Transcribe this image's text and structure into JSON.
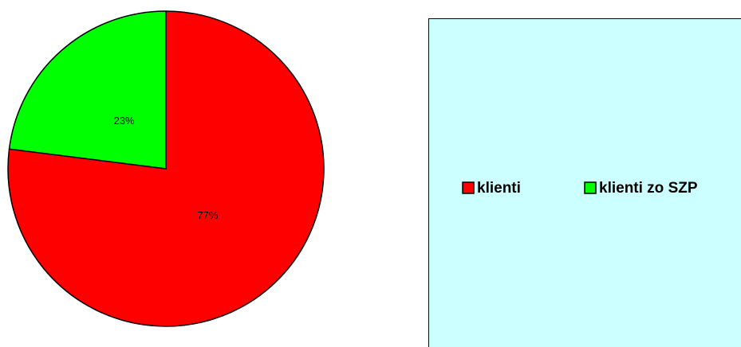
{
  "chart_data": {
    "type": "pie",
    "categories": [
      "klienti",
      "klienti zo SZP"
    ],
    "values": [
      77,
      23
    ],
    "value_labels": [
      "77%",
      "23%"
    ],
    "colors": [
      "#ff0000",
      "#00ff00"
    ],
    "legend": "right"
  }
}
